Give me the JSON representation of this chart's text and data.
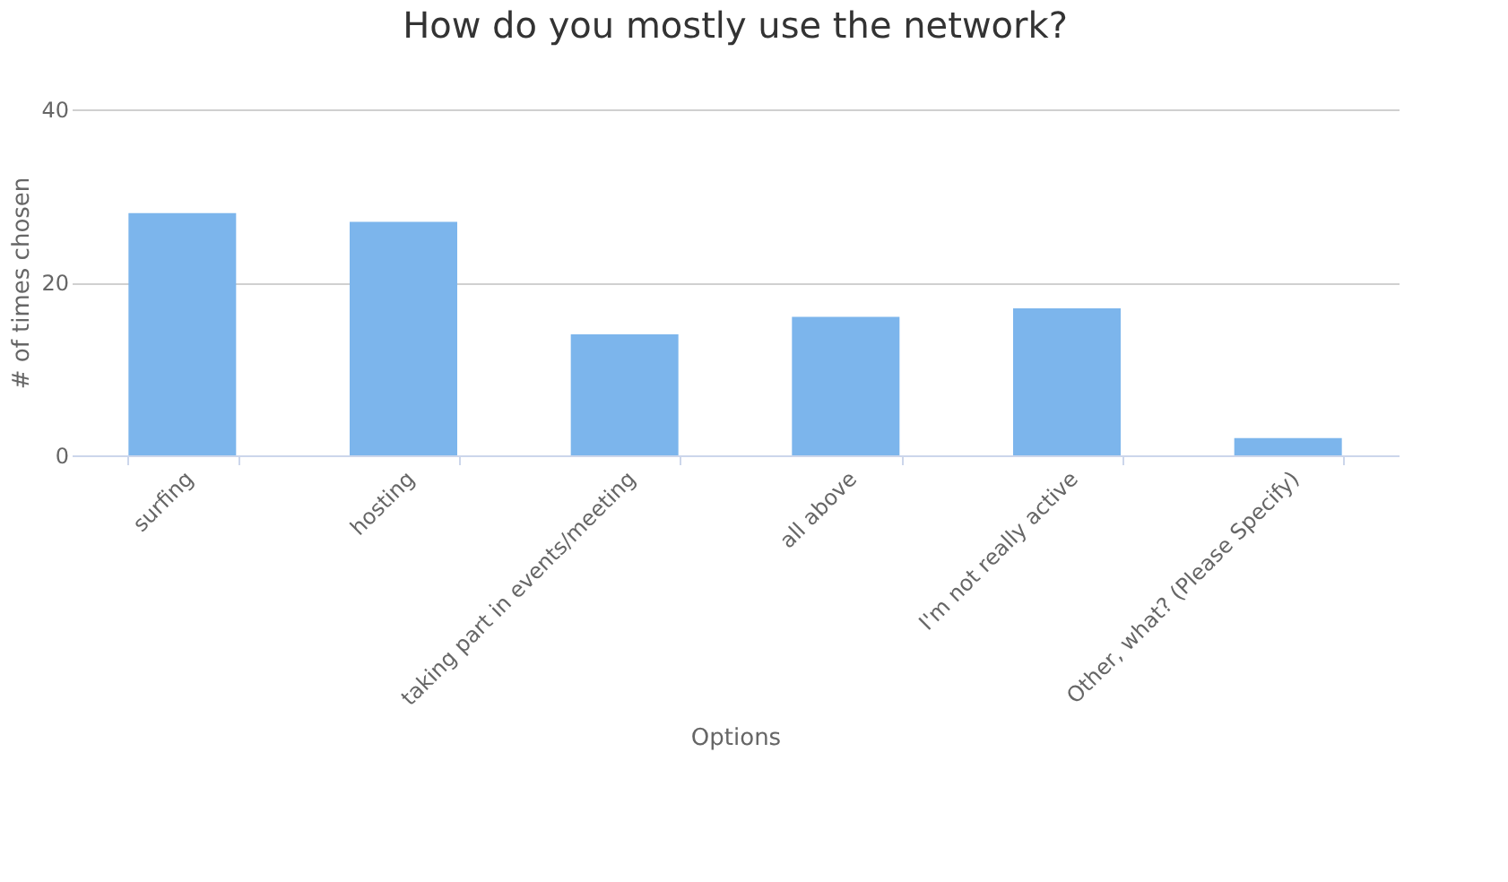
{
  "chart_data": {
    "type": "bar",
    "title": "How do you mostly use the network?",
    "xlabel": "Options",
    "ylabel": "# of times chosen",
    "categories": [
      "surfing",
      "hosting",
      "taking part in events/meeting",
      "all above",
      "I'm not really active",
      "Other, what? (Please Specify)"
    ],
    "values": [
      28,
      27,
      14,
      16,
      17,
      2
    ],
    "color": "#7cb5ec",
    "ylim": [
      0,
      40
    ],
    "yticks": [
      0,
      20,
      40
    ],
    "grid": "y"
  }
}
